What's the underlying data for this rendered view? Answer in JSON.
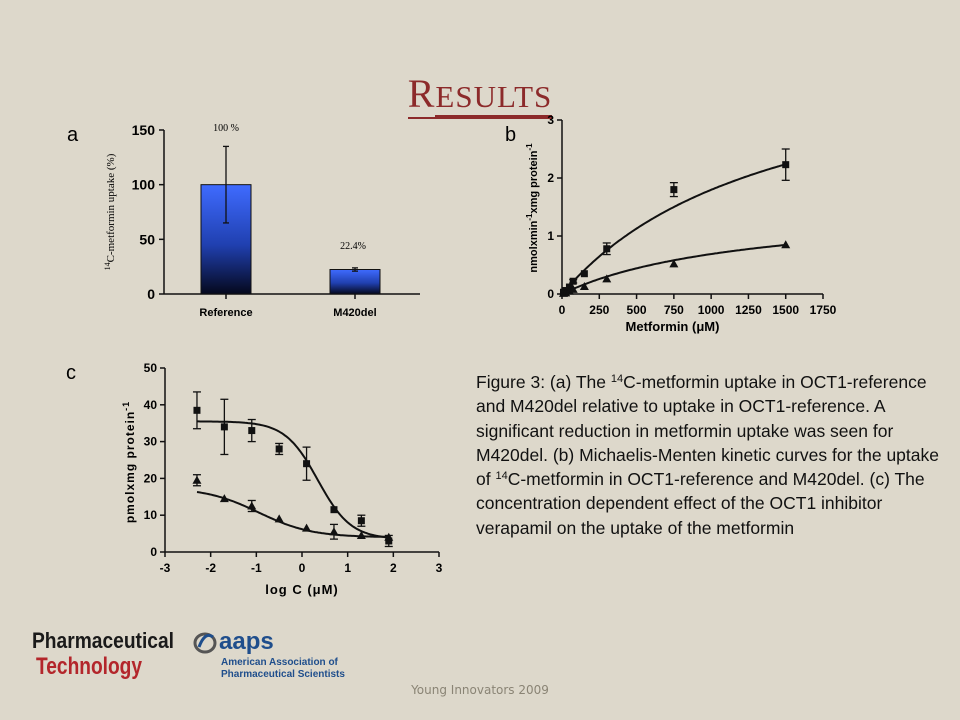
{
  "slide": {
    "title_first": "R",
    "title_rest": "ESULTS",
    "panel_a": "a",
    "panel_b": "b",
    "panel_c": "c",
    "caption": [
      [
        "Figure 3: (a) The ",
        "14",
        "C-metformin uptake in OCT1-reference and M420del relative to uptake in OCT1-reference. A significant reduction in metformin uptake was seen for M420del. (b) Michaelis-Menten kinetic curves for the uptake of ",
        "14",
        "C-metformin in OCT1-reference and M420del. (c) The concentration dependent effect of the OCT1 inhibitor verapamil on the uptake of the metformin"
      ]
    ],
    "footer": "Young Innovators 2009",
    "logo_pt_line1": "Pharmaceutical",
    "logo_pt_line2": "Technology",
    "logo_aaps_name": "aaps",
    "logo_aaps_line1": "American Association of",
    "logo_aaps_line2": "Pharmaceutical Scientists"
  },
  "colors": {
    "title": "#8C2A2A",
    "bar_top": "#3F6BFF",
    "bar_bottom": "#05081C",
    "background": "#DDD8CB",
    "pt_red": "#B3262B",
    "aaps_blue": "#1F4E8C"
  },
  "chart_data": [
    {
      "panel": "a",
      "type": "bar",
      "categories": [
        "Reference",
        "M420del"
      ],
      "values": [
        100,
        22.4
      ],
      "errors": [
        35,
        1.5
      ],
      "data_labels": [
        "100 %",
        "22.4%"
      ],
      "ylabel_sup": "14",
      "ylabel": "C-metformin uptake (%)",
      "ylim": [
        0,
        150
      ],
      "yticks": [
        0,
        50,
        100,
        150
      ]
    },
    {
      "panel": "b",
      "type": "scatter",
      "xlabel": "Metformin (μM)",
      "ylabel": "nmolxmin·¹xmg protein·¹",
      "ylabel_parts": [
        "nmolxmin",
        "-1",
        "xmg protein",
        "-1"
      ],
      "xlim": [
        0,
        1750
      ],
      "ylim": [
        0,
        3
      ],
      "xticks": [
        0,
        250,
        500,
        750,
        1000,
        1250,
        1500,
        1750
      ],
      "yticks": [
        0,
        1,
        2,
        3
      ],
      "series": [
        {
          "marker": "square",
          "x": [
            10,
            25,
            50,
            75,
            150,
            300,
            750,
            1500
          ],
          "y": [
            0.03,
            0.06,
            0.12,
            0.22,
            0.35,
            0.78,
            1.8,
            2.23
          ],
          "err": [
            0,
            0,
            0,
            0.03,
            0,
            0.1,
            0.12,
            0.27
          ],
          "fit": {
            "vmax": 4.4,
            "km": 1450
          }
        },
        {
          "marker": "triangle",
          "x": [
            10,
            25,
            50,
            75,
            150,
            300,
            750,
            1500
          ],
          "y": [
            0.01,
            0.02,
            0.05,
            0.08,
            0.13,
            0.26,
            0.52,
            0.85
          ],
          "err": [
            0,
            0,
            0,
            0,
            0,
            0,
            0,
            0
          ],
          "fit": {
            "vmax": 1.55,
            "km": 1250
          }
        }
      ]
    },
    {
      "panel": "c",
      "type": "scatter",
      "xlabel": "log C (μM)",
      "ylabel": "pmolxmg protein·¹",
      "ylabel_parts": [
        "pmolxmg protein",
        "-1"
      ],
      "xlim": [
        -3,
        3
      ],
      "ylim": [
        0,
        50
      ],
      "xticks": [
        -3,
        -2,
        -1,
        0,
        1,
        2,
        3
      ],
      "yticks": [
        0,
        10,
        20,
        30,
        40,
        50
      ],
      "series": [
        {
          "marker": "square",
          "x": [
            -2.3,
            -1.7,
            -1.1,
            -0.5,
            0.1,
            0.7,
            1.3,
            1.9
          ],
          "y": [
            38.5,
            34,
            33,
            28,
            24,
            11.5,
            8.5,
            3
          ],
          "err": [
            5,
            7.5,
            3,
            1.5,
            4.5,
            0,
            1.5,
            1.5
          ],
          "fit": {
            "top": 35.5,
            "bottom": 3.5,
            "logec50": 0.35,
            "hill": 1.2
          }
        },
        {
          "marker": "triangle",
          "x": [
            -2.3,
            -1.7,
            -1.1,
            -0.5,
            0.1,
            0.7,
            1.3,
            1.9
          ],
          "y": [
            19.5,
            14.5,
            12.5,
            9,
            6.5,
            5.5,
            4.5,
            4
          ],
          "err": [
            1.5,
            0,
            1.5,
            0,
            0,
            2,
            0,
            0
          ],
          "fit": {
            "top": 17.5,
            "bottom": 4,
            "logec50": -0.95,
            "hill": 0.75
          }
        }
      ]
    }
  ]
}
